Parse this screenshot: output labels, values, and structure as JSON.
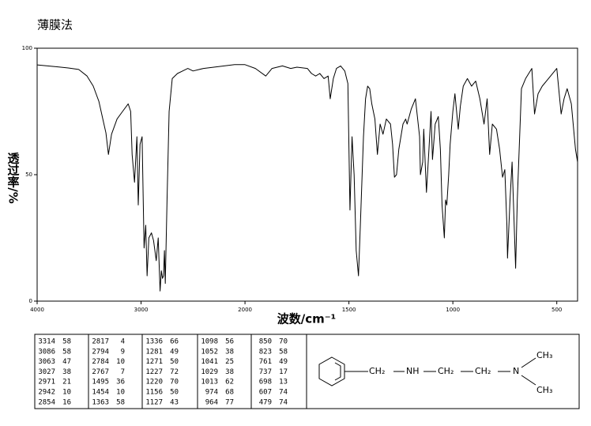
{
  "chart_data": {
    "type": "line",
    "title": "薄膜法",
    "xlabel": "波数/cm⁻¹",
    "ylabel": "透过率/%",
    "xlim": [
      4000,
      400
    ],
    "xticks": [
      4000,
      3000,
      2000,
      1500,
      1000,
      500
    ],
    "ylim": [
      0,
      100
    ],
    "yticks": [
      0,
      50,
      100
    ],
    "color": "#000000",
    "x": [
      4000,
      3900,
      3800,
      3700,
      3600,
      3520,
      3460,
      3406,
      3368,
      3338,
      3314,
      3284,
      3231,
      3178,
      3124,
      3100,
      3086,
      3063,
      3040,
      3027,
      3010,
      2990,
      2971,
      2955,
      2942,
      2925,
      2900,
      2880,
      2854,
      2835,
      2817,
      2805,
      2794,
      2784,
      2775,
      2767,
      2750,
      2730,
      2700,
      2650,
      2600,
      2550,
      2500,
      2400,
      2300,
      2200,
      2100,
      2050,
      2000,
      1950,
      1900,
      1870,
      1820,
      1780,
      1750,
      1700,
      1680,
      1660,
      1640,
      1620,
      1600,
      1590,
      1575,
      1560,
      1540,
      1520,
      1505,
      1495,
      1485,
      1475,
      1465,
      1454,
      1445,
      1430,
      1420,
      1410,
      1400,
      1390,
      1375,
      1363,
      1350,
      1336,
      1320,
      1300,
      1290,
      1281,
      1271,
      1260,
      1240,
      1227,
      1220,
      1200,
      1180,
      1160,
      1156,
      1145,
      1140,
      1127,
      1115,
      1105,
      1098,
      1085,
      1070,
      1060,
      1052,
      1041,
      1035,
      1029,
      1020,
      1013,
      1000,
      990,
      974,
      964,
      950,
      930,
      910,
      890,
      870,
      850,
      835,
      823,
      810,
      790,
      775,
      761,
      750,
      740,
      737,
      725,
      715,
      698,
      690,
      670,
      650,
      620,
      607,
      590,
      570,
      540,
      500,
      479,
      465,
      450,
      430,
      410,
      400
    ],
    "values": [
      93.4,
      93,
      92.6,
      92.2,
      91.6,
      89,
      85,
      79,
      72,
      66.5,
      58,
      66,
      72,
      75,
      78,
      75,
      58,
      47,
      65,
      38,
      62,
      65,
      21,
      30,
      10,
      25,
      27,
      24,
      16,
      25,
      4,
      12,
      9,
      10,
      20,
      7,
      40,
      75,
      88,
      90,
      91,
      92,
      91,
      92,
      92.5,
      93,
      93.5,
      93.5,
      93.5,
      92,
      89,
      92,
      93,
      92,
      92.5,
      92,
      90,
      89,
      90,
      88,
      89,
      80,
      88,
      92,
      93,
      91,
      86,
      36,
      65,
      50,
      20,
      10,
      30,
      65,
      80,
      85,
      84,
      78,
      72,
      58,
      70,
      66,
      72,
      70,
      62,
      49,
      50,
      60,
      70,
      72,
      70,
      76,
      80,
      65,
      50,
      55,
      68,
      43,
      60,
      75,
      56,
      70,
      73,
      60,
      38,
      25,
      40,
      38,
      50,
      62,
      75,
      82,
      68,
      77,
      85,
      88,
      85,
      87,
      80,
      70,
      80,
      58,
      70,
      68,
      60,
      49,
      52,
      30,
      17,
      40,
      55,
      13,
      40,
      84,
      88,
      92,
      74,
      82,
      85,
      88,
      92,
      74,
      80,
      84,
      78,
      60,
      55
    ]
  },
  "peak_table": {
    "columns": [
      [
        [
          3314,
          58
        ],
        [
          3086,
          58
        ],
        [
          3063,
          47
        ],
        [
          3027,
          38
        ],
        [
          2971,
          21
        ],
        [
          2942,
          10
        ],
        [
          2854,
          16
        ]
      ],
      [
        [
          2817,
          4
        ],
        [
          2794,
          9
        ],
        [
          2784,
          10
        ],
        [
          2767,
          7
        ],
        [
          1495,
          36
        ],
        [
          1454,
          10
        ],
        [
          1363,
          58
        ]
      ],
      [
        [
          1336,
          66
        ],
        [
          1281,
          49
        ],
        [
          1271,
          50
        ],
        [
          1227,
          72
        ],
        [
          1220,
          70
        ],
        [
          1156,
          50
        ],
        [
          1127,
          43
        ]
      ],
      [
        [
          1098,
          56
        ],
        [
          1052,
          38
        ],
        [
          1041,
          25
        ],
        [
          1029,
          38
        ],
        [
          1013,
          62
        ],
        [
          974,
          68
        ],
        [
          964,
          77
        ]
      ],
      [
        [
          850,
          70
        ],
        [
          823,
          58
        ],
        [
          761,
          49
        ],
        [
          737,
          17
        ],
        [
          698,
          13
        ],
        [
          607,
          74
        ],
        [
          479,
          74
        ]
      ]
    ]
  },
  "structure": {
    "labels": [
      "CH₂",
      "NH",
      "CH₂",
      "CH₂",
      "N",
      "CH₃",
      "CH₃"
    ]
  }
}
